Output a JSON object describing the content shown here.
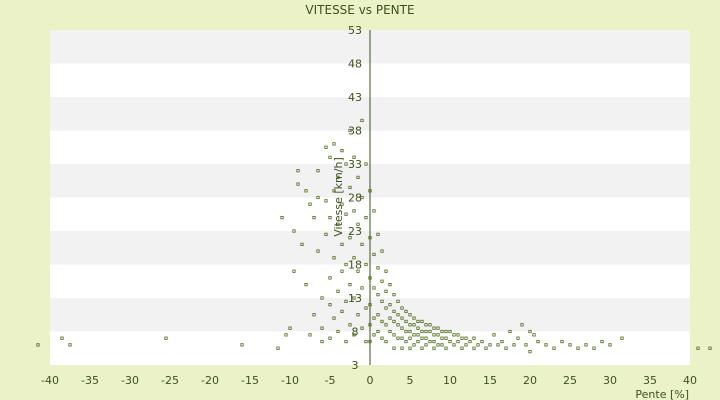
{
  "chart_data": {
    "type": "scatter",
    "title": "VITESSE vs PENTE",
    "xlabel": "Pente [%]",
    "ylabel": "Vitesse [km/h]",
    "xlim": [
      -40,
      40
    ],
    "ylim": [
      3,
      53
    ],
    "x_ticks": [
      -40,
      -35,
      -30,
      -25,
      -20,
      -15,
      -10,
      -5,
      0,
      5,
      10,
      15,
      20,
      25,
      30,
      35,
      40
    ],
    "y_ticks": [
      3,
      8,
      13,
      18,
      23,
      28,
      33,
      38,
      43,
      48,
      53
    ],
    "grid": true,
    "legend": "none",
    "colors": {
      "background": "#ecf2c8",
      "band_light": "#ffffff",
      "band_dark": "#f2f2f2",
      "point": "#4f6e1c",
      "axis": "#3a5218",
      "text": "#3a5218"
    },
    "series": [
      {
        "points": [
          [
            -41.5,
            6.0
          ],
          [
            -38.5,
            7.0
          ],
          [
            -37.5,
            6.0
          ],
          [
            -25.5,
            7.0
          ],
          [
            -16,
            6.0
          ],
          [
            -11.5,
            5.5
          ],
          [
            -11,
            25.0
          ],
          [
            -10.5,
            7.5
          ],
          [
            -10,
            8.5
          ],
          [
            -9.5,
            23.0
          ],
          [
            -9.5,
            17.0
          ],
          [
            -9,
            30.0
          ],
          [
            -9,
            32.0
          ],
          [
            -8.5,
            21.0
          ],
          [
            -8,
            29.0
          ],
          [
            -8,
            15.0
          ],
          [
            -7.5,
            27.0
          ],
          [
            -7.5,
            7.5
          ],
          [
            -7,
            25.0
          ],
          [
            -7,
            10.5
          ],
          [
            -6.5,
            32.0
          ],
          [
            -6.5,
            28.0
          ],
          [
            -6.5,
            20.0
          ],
          [
            -6,
            13.0
          ],
          [
            -6,
            8.5
          ],
          [
            -6,
            6.5
          ],
          [
            -5.5,
            35.5
          ],
          [
            -5.5,
            27.5
          ],
          [
            -5.5,
            22.5
          ],
          [
            -5,
            34.0
          ],
          [
            -5,
            25.0
          ],
          [
            -5,
            16.0
          ],
          [
            -5,
            12.0
          ],
          [
            -5,
            7.0
          ],
          [
            -4.5,
            36.0
          ],
          [
            -4.5,
            29.0
          ],
          [
            -4.5,
            19.0
          ],
          [
            -4.5,
            10.0
          ],
          [
            -4,
            31.0
          ],
          [
            -4,
            24.0
          ],
          [
            -4,
            14.0
          ],
          [
            -4,
            8.0
          ],
          [
            -3.5,
            35.0
          ],
          [
            -3.5,
            27.0
          ],
          [
            -3.5,
            21.0
          ],
          [
            -3.5,
            17.0
          ],
          [
            -3.5,
            11.0
          ],
          [
            -3,
            33.0
          ],
          [
            -3,
            25.5
          ],
          [
            -3,
            18.0
          ],
          [
            -3,
            12.5
          ],
          [
            -3,
            6.5
          ],
          [
            -2.5,
            38.0
          ],
          [
            -2.5,
            29.5
          ],
          [
            -2.5,
            22.0
          ],
          [
            -2.5,
            15.0
          ],
          [
            -2.5,
            9.0
          ],
          [
            -2,
            34.0
          ],
          [
            -2,
            26.0
          ],
          [
            -2,
            19.0
          ],
          [
            -2,
            13.0
          ],
          [
            -2,
            7.5
          ],
          [
            -1.5,
            31.0
          ],
          [
            -1.5,
            24.0
          ],
          [
            -1.5,
            17.0
          ],
          [
            -1.5,
            10.5
          ],
          [
            -1,
            39.5
          ],
          [
            -1,
            28.0
          ],
          [
            -1,
            21.0
          ],
          [
            -1,
            14.5
          ],
          [
            -1,
            8.5
          ],
          [
            -0.5,
            33.0
          ],
          [
            -0.5,
            25.0
          ],
          [
            -0.5,
            18.0
          ],
          [
            -0.5,
            11.5
          ],
          [
            -0.5,
            6.5
          ],
          [
            0,
            29.0
          ],
          [
            0,
            22.0
          ],
          [
            0,
            16.0
          ],
          [
            0,
            12.0
          ],
          [
            0,
            9.0
          ],
          [
            0,
            6.5
          ],
          [
            0.5,
            26.0
          ],
          [
            0.5,
            19.5
          ],
          [
            0.5,
            14.5
          ],
          [
            0.5,
            10.0
          ],
          [
            0.5,
            7.5
          ],
          [
            1,
            22.5
          ],
          [
            1,
            17.5
          ],
          [
            1,
            13.5
          ],
          [
            1,
            10.5
          ],
          [
            1,
            8.0
          ],
          [
            1.5,
            20.0
          ],
          [
            1.5,
            15.5
          ],
          [
            1.5,
            12.5
          ],
          [
            1.5,
            9.5
          ],
          [
            1.5,
            7.0
          ],
          [
            2,
            17.0
          ],
          [
            2,
            14.0
          ],
          [
            2,
            11.5
          ],
          [
            2,
            9.0
          ],
          [
            2,
            6.5
          ],
          [
            2.5,
            15.0
          ],
          [
            2.5,
            12.0
          ],
          [
            2.5,
            10.0
          ],
          [
            2.5,
            8.0
          ],
          [
            3,
            13.5
          ],
          [
            3,
            11.0
          ],
          [
            3,
            9.5
          ],
          [
            3,
            7.5
          ],
          [
            3,
            5.5
          ],
          [
            3.5,
            12.5
          ],
          [
            3.5,
            10.5
          ],
          [
            3.5,
            9.0
          ],
          [
            3.5,
            7.0
          ],
          [
            4,
            11.5
          ],
          [
            4,
            10.0
          ],
          [
            4,
            8.5
          ],
          [
            4,
            7.0
          ],
          [
            4,
            5.5
          ],
          [
            4.5,
            11.0
          ],
          [
            4.5,
            9.5
          ],
          [
            4.5,
            8.0
          ],
          [
            4.5,
            6.5
          ],
          [
            5,
            10.5
          ],
          [
            5,
            9.0
          ],
          [
            5,
            8.0
          ],
          [
            5,
            7.0
          ],
          [
            5,
            5.5
          ],
          [
            5.5,
            10.0
          ],
          [
            5.5,
            9.0
          ],
          [
            5.5,
            7.5
          ],
          [
            5.5,
            6.0
          ],
          [
            6,
            9.5
          ],
          [
            6,
            8.5
          ],
          [
            6,
            7.5
          ],
          [
            6,
            6.5
          ],
          [
            6.5,
            9.5
          ],
          [
            6.5,
            8.0
          ],
          [
            6.5,
            7.0
          ],
          [
            6.5,
            5.5
          ],
          [
            7,
            9.0
          ],
          [
            7,
            8.0
          ],
          [
            7,
            7.0
          ],
          [
            7,
            6.0
          ],
          [
            7.5,
            9.0
          ],
          [
            7.5,
            8.0
          ],
          [
            7.5,
            6.5
          ],
          [
            8,
            8.5
          ],
          [
            8,
            7.5
          ],
          [
            8,
            6.5
          ],
          [
            8,
            5.5
          ],
          [
            8.5,
            8.5
          ],
          [
            8.5,
            7.5
          ],
          [
            8.5,
            6.0
          ],
          [
            9,
            8.0
          ],
          [
            9,
            7.0
          ],
          [
            9,
            6.0
          ],
          [
            9.5,
            8.0
          ],
          [
            9.5,
            7.0
          ],
          [
            9.5,
            5.5
          ],
          [
            10,
            8.0
          ],
          [
            10,
            6.5
          ],
          [
            10.5,
            7.5
          ],
          [
            10.5,
            6.0
          ],
          [
            11,
            7.5
          ],
          [
            11,
            6.5
          ],
          [
            11.5,
            7.0
          ],
          [
            11.5,
            5.5
          ],
          [
            12,
            7.0
          ],
          [
            12,
            6.0
          ],
          [
            12.5,
            6.5
          ],
          [
            13,
            7.0
          ],
          [
            13,
            5.5
          ],
          [
            13.5,
            6.0
          ],
          [
            14,
            6.5
          ],
          [
            14.5,
            5.5
          ],
          [
            15,
            6.0
          ],
          [
            15.5,
            7.5
          ],
          [
            16,
            6.0
          ],
          [
            16.5,
            6.5
          ],
          [
            17,
            5.5
          ],
          [
            17.5,
            8.0
          ],
          [
            18,
            6.0
          ],
          [
            18.5,
            7.0
          ],
          [
            19,
            9.0
          ],
          [
            19.5,
            6.0
          ],
          [
            20,
            8.0
          ],
          [
            20,
            5.0
          ],
          [
            20.5,
            7.5
          ],
          [
            21,
            6.5
          ],
          [
            22,
            6.0
          ],
          [
            23,
            5.5
          ],
          [
            24,
            6.5
          ],
          [
            25,
            6.0
          ],
          [
            26,
            5.5
          ],
          [
            27,
            6.0
          ],
          [
            28,
            5.5
          ],
          [
            29,
            6.5
          ],
          [
            30,
            6.0
          ],
          [
            31.5,
            7.0
          ],
          [
            41,
            5.5
          ],
          [
            42.5,
            5.5
          ]
        ]
      }
    ]
  }
}
